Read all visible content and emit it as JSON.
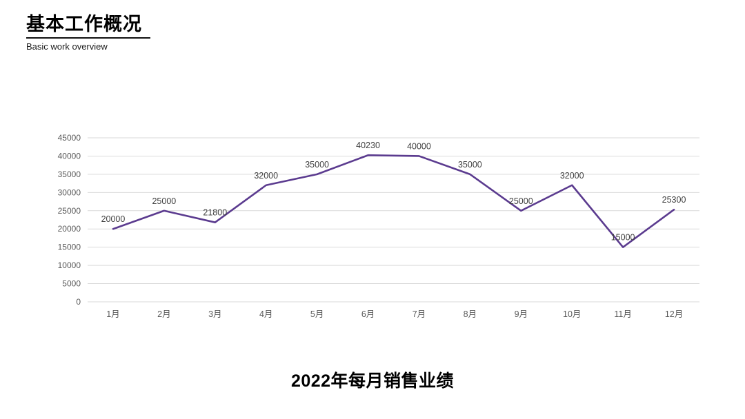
{
  "header": {
    "title": "基本工作概况",
    "subtitle": "Basic work overview"
  },
  "chart_data": {
    "type": "line",
    "title": "2022年每月销售业绩",
    "categories": [
      "1月",
      "2月",
      "3月",
      "4月",
      "5月",
      "6月",
      "7月",
      "8月",
      "9月",
      "10月",
      "11月",
      "12月"
    ],
    "values": [
      20000,
      25000,
      21800,
      32000,
      35000,
      40230,
      40000,
      35000,
      25000,
      32000,
      15000,
      25300
    ],
    "ylim": [
      0,
      45000
    ],
    "ytick_step": 5000,
    "grid": true,
    "legend": "none",
    "data_labels": true,
    "colors": {
      "line": "#5b3b8f",
      "grid": "#d9d9d9",
      "axis_text": "#595959",
      "data_label_text": "#404040"
    }
  }
}
